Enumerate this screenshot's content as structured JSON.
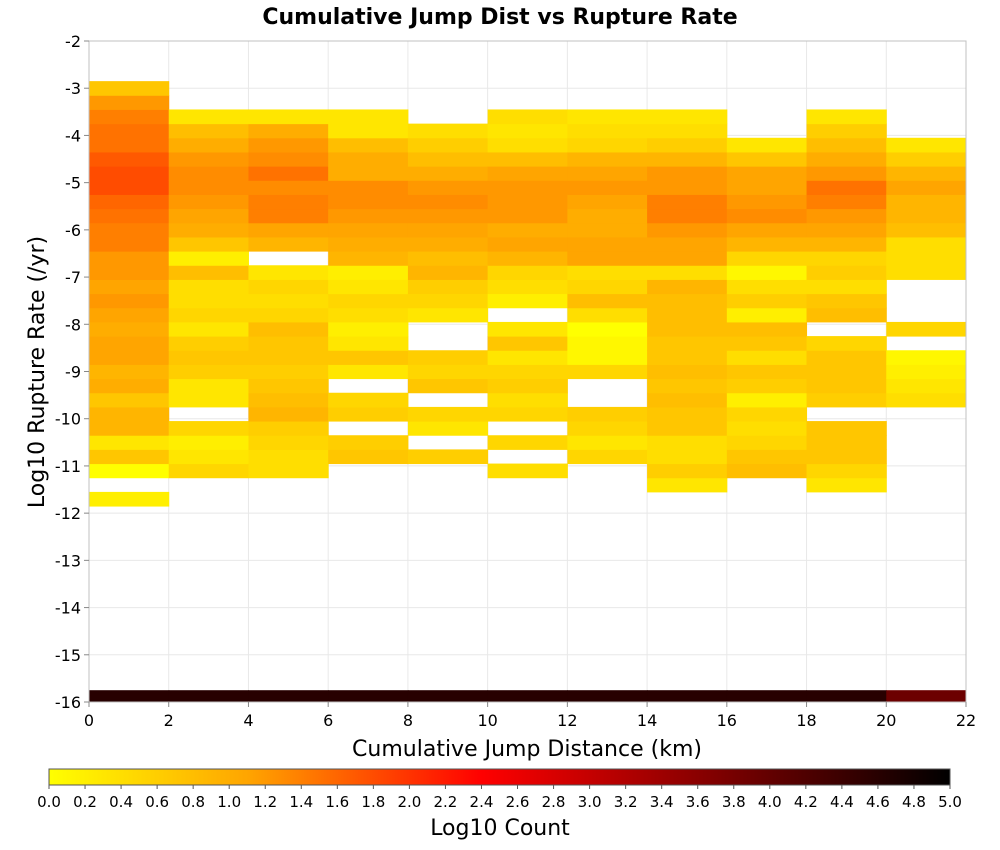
{
  "chart_data": {
    "type": "heatmap",
    "title": "Cumulative Jump Dist vs Rupture Rate",
    "xlabel": "Cumulative Jump Distance (km)",
    "ylabel": "Log10 Rupture Rate (/yr)",
    "xlim": [
      0,
      22
    ],
    "ylim": [
      -16,
      -2
    ],
    "x_ticks": [
      0,
      2,
      4,
      6,
      8,
      10,
      12,
      14,
      16,
      18,
      20,
      22
    ],
    "y_ticks": [
      -2,
      -3,
      -4,
      -5,
      -6,
      -7,
      -8,
      -9,
      -10,
      -11,
      -12,
      -13,
      -14,
      -15,
      -16
    ],
    "x_bin_width": 2,
    "y_bin_width": 0.3,
    "grid": true,
    "colorbar": {
      "label": "Log10 Count",
      "min": 0.0,
      "max": 5.0,
      "ticks": [
        "0.0",
        "0.2",
        "0.4",
        "0.6",
        "0.8",
        "1.0",
        "1.2",
        "1.4",
        "1.6",
        "1.8",
        "2.0",
        "2.2",
        "2.4",
        "2.6",
        "2.8",
        "3.0",
        "3.2",
        "3.4",
        "3.6",
        "3.8",
        "4.0",
        "4.2",
        "4.4",
        "4.6",
        "4.8",
        "5.0"
      ],
      "colors": [
        "#ffff00",
        "#ffa500",
        "#ff0000",
        "#800000",
        "#000000"
      ]
    },
    "columns": [
      {
        "x": 1,
        "y_values": [
          -11.7,
          -11.1,
          -10.8,
          -10.5,
          -10.2,
          -9.9,
          -9.6,
          -9.3,
          -9.0,
          -8.7,
          -8.4,
          -8.1,
          -7.8,
          -7.5,
          -7.2,
          -6.9,
          -6.6,
          -6.3,
          -6.0,
          -5.7,
          -5.4,
          -5.1,
          -4.8,
          -4.5,
          -4.2,
          -3.9,
          -3.6,
          -3.3,
          -3.0
        ],
        "counts": [
          0.2,
          0.0,
          0.7,
          0.3,
          0.9,
          0.9,
          0.7,
          1.0,
          0.9,
          1.1,
          1.1,
          1.0,
          1.1,
          1.2,
          1.1,
          1.2,
          1.2,
          1.4,
          1.4,
          1.5,
          1.6,
          1.8,
          1.8,
          1.7,
          1.5,
          1.5,
          1.4,
          1.2,
          0.7
        ]
      },
      {
        "x": 3,
        "y_values": [
          -11.1,
          -10.8,
          -10.5,
          -10.2,
          -9.6,
          -9.3,
          -9.0,
          -8.7,
          -8.4,
          -8.1,
          -7.8,
          -7.5,
          -7.2,
          -6.9,
          -6.6,
          -6.3,
          -6.0,
          -5.7,
          -5.4,
          -5.1,
          -4.8,
          -4.5,
          -4.2,
          -3.9,
          -3.6
        ],
        "counts": [
          0.5,
          0.3,
          0.2,
          0.5,
          0.3,
          0.3,
          0.6,
          0.7,
          0.6,
          0.3,
          0.5,
          0.4,
          0.4,
          0.8,
          0.2,
          0.7,
          1.0,
          1.1,
          1.2,
          1.3,
          1.3,
          1.2,
          1.0,
          0.8,
          0.3
        ]
      },
      {
        "x": 5,
        "y_values": [
          -11.1,
          -10.8,
          -10.5,
          -10.2,
          -9.9,
          -9.6,
          -9.3,
          -9.0,
          -8.7,
          -8.4,
          -8.1,
          -7.8,
          -7.5,
          -7.2,
          -6.9,
          -6.3,
          -6.0,
          -5.7,
          -5.4,
          -5.1,
          -4.8,
          -4.5,
          -4.2,
          -3.9,
          -3.6
        ],
        "counts": [
          0.4,
          0.4,
          0.5,
          0.6,
          0.9,
          0.8,
          0.7,
          0.6,
          0.7,
          0.7,
          0.8,
          0.5,
          0.4,
          0.5,
          0.3,
          0.9,
          1.1,
          1.4,
          1.4,
          1.3,
          1.5,
          1.3,
          1.2,
          1.0,
          0.3
        ]
      },
      {
        "x": 7,
        "y_values": [
          -10.8,
          -10.5,
          -9.9,
          -9.6,
          -9.0,
          -8.7,
          -8.4,
          -8.1,
          -7.8,
          -7.5,
          -7.2,
          -6.9,
          -6.6,
          -6.3,
          -6.0,
          -5.7,
          -5.4,
          -5.1,
          -4.8,
          -4.5,
          -4.2,
          -3.9,
          -3.6
        ],
        "counts": [
          0.7,
          0.6,
          0.6,
          0.5,
          0.3,
          0.7,
          0.3,
          0.2,
          0.4,
          0.5,
          0.3,
          0.2,
          0.9,
          1.0,
          1.1,
          1.2,
          1.3,
          1.3,
          1.0,
          1.0,
          0.8,
          0.3,
          0.3
        ]
      },
      {
        "x": 9,
        "y_values": [
          -10.8,
          -10.2,
          -9.9,
          -9.3,
          -9.0,
          -8.7,
          -7.8,
          -7.5,
          -7.2,
          -6.9,
          -6.6,
          -6.3,
          -6.0,
          -5.7,
          -5.4,
          -5.1,
          -4.8,
          -4.5,
          -4.2,
          -3.9
        ],
        "counts": [
          0.6,
          0.3,
          0.5,
          0.7,
          0.5,
          0.6,
          0.3,
          0.5,
          0.6,
          0.9,
          0.8,
          1.0,
          1.1,
          1.2,
          1.3,
          1.2,
          1.0,
          0.8,
          0.6,
          0.4
        ]
      },
      {
        "x": 11,
        "y_values": [
          -11.1,
          -10.5,
          -9.9,
          -9.6,
          -9.3,
          -9.0,
          -8.7,
          -8.4,
          -8.1,
          -7.5,
          -7.2,
          -6.9,
          -6.6,
          -6.3,
          -6.0,
          -5.7,
          -5.4,
          -5.1,
          -4.8,
          -4.5,
          -4.2,
          -3.9,
          -3.6
        ],
        "counts": [
          0.4,
          0.5,
          0.5,
          0.4,
          0.6,
          0.5,
          0.3,
          0.7,
          0.3,
          0.2,
          0.4,
          0.5,
          0.9,
          1.1,
          1.0,
          1.2,
          1.2,
          1.2,
          1.1,
          0.8,
          0.4,
          0.3,
          0.4
        ]
      },
      {
        "x": 13,
        "y_values": [
          -10.8,
          -10.5,
          -10.2,
          -9.9,
          -9.0,
          -8.7,
          -8.4,
          -8.1,
          -7.8,
          -7.5,
          -7.2,
          -6.9,
          -6.6,
          -6.3,
          -6.0,
          -5.7,
          -5.4,
          -5.1,
          -4.8,
          -4.5,
          -4.2,
          -3.9,
          -3.6
        ],
        "counts": [
          0.5,
          0.3,
          0.5,
          0.6,
          0.5,
          0.1,
          0.1,
          0.0,
          0.4,
          0.8,
          0.5,
          0.4,
          1.1,
          1.1,
          1.0,
          1.0,
          1.1,
          1.2,
          1.1,
          0.9,
          0.5,
          0.4,
          0.3
        ]
      },
      {
        "x": 15,
        "y_values": [
          -11.4,
          -11.1,
          -10.8,
          -10.5,
          -10.2,
          -9.9,
          -9.6,
          -9.3,
          -9.0,
          -8.7,
          -8.4,
          -8.1,
          -7.8,
          -7.5,
          -7.2,
          -6.9,
          -6.6,
          -6.3,
          -6.0,
          -5.7,
          -5.4,
          -5.1,
          -4.8,
          -4.5,
          -4.2,
          -3.9,
          -3.6
        ],
        "counts": [
          0.3,
          0.6,
          0.4,
          0.4,
          0.7,
          0.7,
          0.8,
          0.7,
          0.8,
          0.7,
          0.7,
          0.8,
          0.8,
          0.8,
          0.9,
          0.4,
          1.1,
          1.1,
          1.2,
          1.4,
          1.4,
          1.2,
          1.2,
          0.9,
          0.6,
          0.4,
          0.3
        ]
      },
      {
        "x": 17,
        "y_values": [
          -11.1,
          -10.8,
          -10.5,
          -10.2,
          -9.9,
          -9.6,
          -9.3,
          -9.0,
          -8.7,
          -8.4,
          -8.1,
          -7.8,
          -7.5,
          -7.2,
          -6.9,
          -6.6,
          -6.3,
          -6.0,
          -5.7,
          -5.4,
          -5.1,
          -4.8,
          -4.5,
          -4.2
        ],
        "counts": [
          0.8,
          0.7,
          0.5,
          0.4,
          0.5,
          0.2,
          0.6,
          0.7,
          0.4,
          0.7,
          0.8,
          0.2,
          0.6,
          0.4,
          0.1,
          0.5,
          0.9,
          1.1,
          1.3,
          1.2,
          1.1,
          1.1,
          0.7,
          0.3
        ]
      },
      {
        "x": 19,
        "y_values": [
          -11.4,
          -11.1,
          -10.8,
          -10.5,
          -10.2,
          -9.6,
          -9.3,
          -9.0,
          -8.7,
          -8.4,
          -7.8,
          -7.5,
          -7.2,
          -6.9,
          -6.6,
          -6.3,
          -6.0,
          -5.7,
          -5.4,
          -5.1,
          -4.8,
          -4.5,
          -4.2,
          -3.9,
          -3.6
        ],
        "counts": [
          0.3,
          0.5,
          0.7,
          0.7,
          0.7,
          0.6,
          0.7,
          0.7,
          0.7,
          0.5,
          0.8,
          0.7,
          0.4,
          0.6,
          0.5,
          0.9,
          1.1,
          1.2,
          1.4,
          1.5,
          1.2,
          1.0,
          0.8,
          0.6,
          0.3
        ]
      },
      {
        "x": 21,
        "y_values": [
          -9.6,
          -9.3,
          -9.0,
          -8.7,
          -8.1,
          -6.9,
          -6.6,
          -6.3,
          -6.0,
          -5.7,
          -5.4,
          -5.1,
          -4.8,
          -4.5,
          -4.2
        ],
        "counts": [
          0.4,
          0.3,
          0.2,
          0.1,
          0.5,
          0.4,
          0.4,
          0.4,
          0.8,
          0.9,
          0.9,
          1.1,
          0.9,
          0.6,
          0.3
        ]
      }
    ],
    "bottom_row": {
      "y": -15.9,
      "counts": [
        4.6,
        4.6,
        4.6,
        4.6,
        4.6,
        4.6,
        4.6,
        4.6,
        4.6,
        4.6,
        3.9
      ]
    }
  }
}
